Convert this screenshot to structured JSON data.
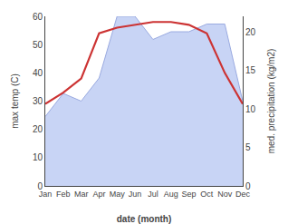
{
  "chart_data": {
    "type": "line",
    "categories": [
      "Jan",
      "Feb",
      "Mar",
      "Apr",
      "May",
      "Jun",
      "Jul",
      "Aug",
      "Sep",
      "Oct",
      "Nov",
      "Dec"
    ],
    "xlabel": "date (month)",
    "ylabel": "max temp (C)",
    "y2label": "med. precipitation (kg/m2)",
    "ylim": [
      0,
      60
    ],
    "yticks": [
      0,
      10,
      20,
      30,
      40,
      50,
      60
    ],
    "y2lim": [
      0,
      22
    ],
    "y2ticks": [
      0,
      5,
      10,
      15,
      20
    ],
    "grid": false,
    "series": [
      {
        "type": "area",
        "axis": "y2",
        "color": "#c8d4f5",
        "values": [
          9,
          12,
          11,
          14,
          22,
          22,
          19,
          20,
          20,
          21,
          21,
          11
        ]
      },
      {
        "type": "line",
        "color": "#cc3333",
        "values": [
          29,
          33,
          38,
          54,
          56,
          57,
          58,
          58,
          57,
          54,
          40,
          29
        ]
      }
    ]
  }
}
